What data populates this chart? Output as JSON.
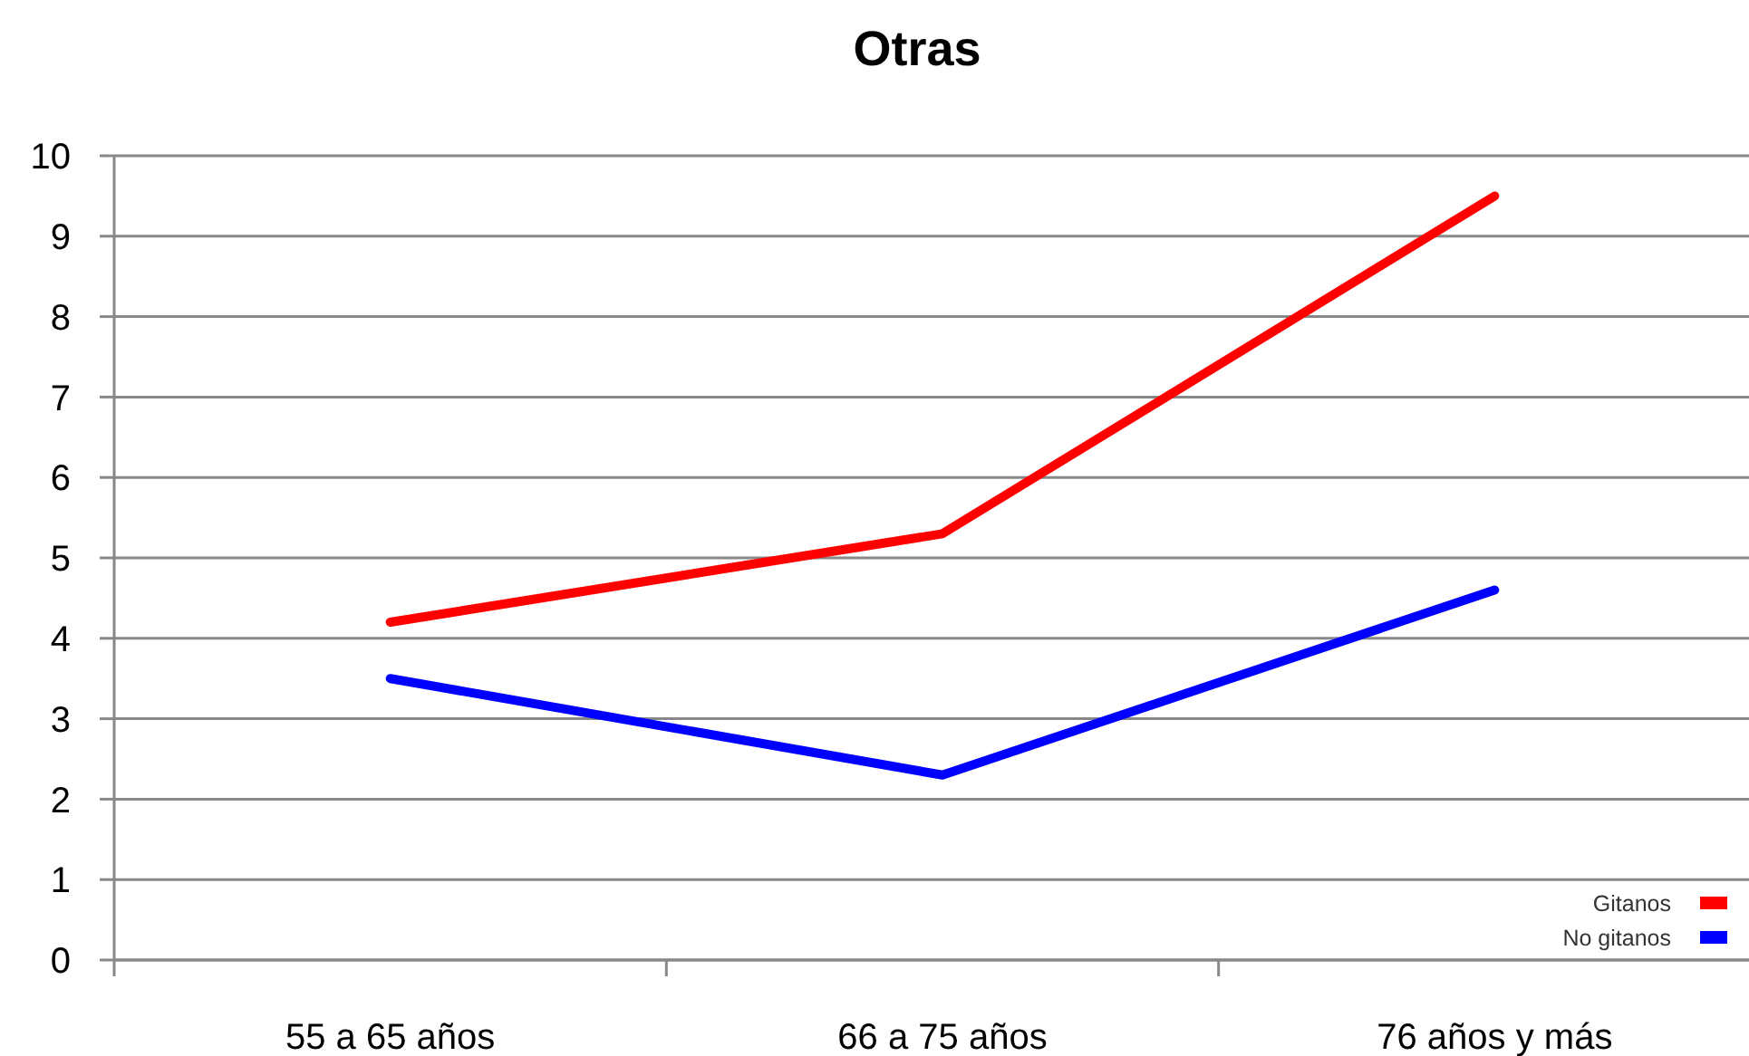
{
  "chart_data": {
    "type": "line",
    "title": "Otras",
    "categories": [
      "55 a 65 años",
      "66 a 75 años",
      "76 años y más"
    ],
    "series": [
      {
        "name": "Gitanos",
        "color": "#ff0000",
        "values": [
          4.2,
          5.3,
          9.5
        ]
      },
      {
        "name": "No gitanos",
        "color": "#0000ff",
        "values": [
          3.5,
          2.3,
          4.6
        ]
      }
    ],
    "ylim": [
      0,
      10
    ],
    "yticks": [
      0,
      1,
      2,
      3,
      4,
      5,
      6,
      7,
      8,
      9,
      10
    ],
    "grid": "y",
    "legend": "bottom right",
    "marker": "none",
    "line_style": "solid"
  }
}
